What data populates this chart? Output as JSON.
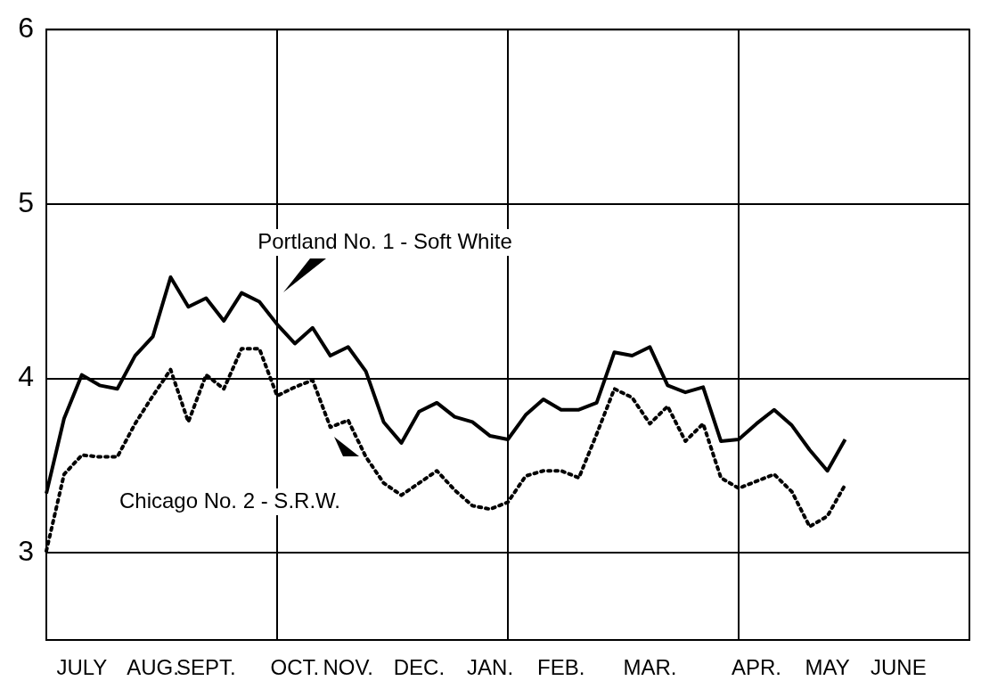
{
  "chart_data": {
    "type": "line",
    "ylim": [
      2.5,
      6
    ],
    "categories": [
      null,
      null,
      "JULY",
      null,
      null,
      null,
      "AUG.",
      null,
      null,
      "SEPT.",
      null,
      null,
      null,
      null,
      "OCT.",
      null,
      null,
      "NOV.",
      null,
      null,
      null,
      "DEC.",
      null,
      null,
      null,
      "JAN.",
      null,
      null,
      null,
      "FEB.",
      null,
      null,
      null,
      null,
      "MAR.",
      null,
      null,
      null,
      null,
      null,
      "APR.",
      null,
      null,
      null,
      "MAY",
      null,
      null,
      null,
      "JUNE",
      null,
      null,
      null,
      null
    ],
    "yticks": [
      3,
      4,
      5,
      6
    ],
    "grid": true,
    "legend": false,
    "marker": "none",
    "series": [
      {
        "name": "Portland No. 1 - Soft White",
        "color": "#000000",
        "line_style": "solid",
        "values": [
          3.34,
          3.77,
          4.02,
          3.96,
          3.94,
          4.13,
          4.24,
          4.58,
          4.41,
          4.46,
          4.33,
          4.49,
          4.44,
          4.31,
          4.2,
          4.29,
          4.13,
          4.18,
          4.04,
          3.75,
          3.63,
          3.81,
          3.86,
          3.78,
          3.75,
          3.67,
          3.65,
          3.79,
          3.88,
          3.82,
          3.82,
          3.86,
          4.15,
          4.13,
          4.18,
          3.96,
          3.92,
          3.95,
          3.64,
          3.65,
          3.74,
          3.82,
          3.73,
          3.59,
          3.47,
          3.65,
          null,
          null,
          null,
          null,
          null,
          null,
          null
        ]
      },
      {
        "name": "Chicago No. 2 - S.R.W.",
        "color": "#000000",
        "line_style": "dotted",
        "values": [
          3.01,
          3.45,
          3.56,
          3.55,
          3.55,
          3.74,
          3.9,
          4.05,
          3.75,
          4.02,
          3.94,
          4.17,
          4.17,
          3.9,
          3.95,
          3.99,
          3.72,
          3.76,
          3.55,
          3.4,
          3.33,
          3.4,
          3.47,
          3.36,
          3.27,
          3.25,
          3.29,
          3.44,
          3.47,
          3.47,
          3.43,
          3.68,
          3.94,
          3.89,
          3.74,
          3.84,
          3.64,
          3.74,
          3.43,
          3.37,
          3.41,
          3.45,
          3.35,
          3.15,
          3.21,
          3.39,
          null,
          null,
          null,
          null,
          null,
          null,
          null
        ]
      }
    ]
  }
}
